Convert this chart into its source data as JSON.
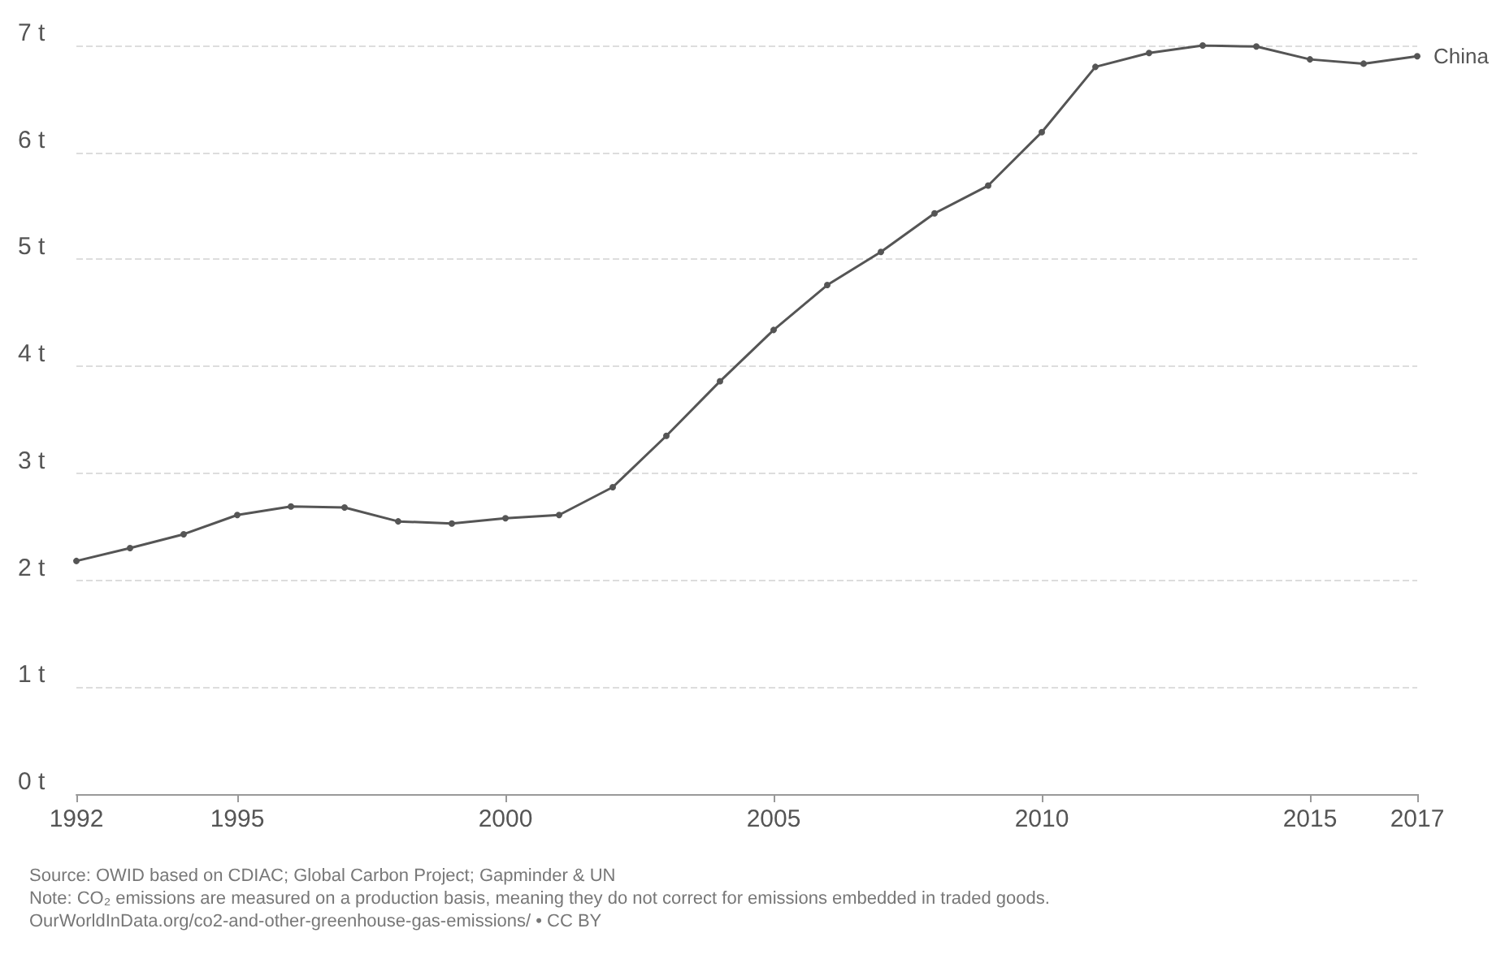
{
  "chart_data": {
    "type": "line",
    "x": [
      1992,
      1993,
      1994,
      1995,
      1996,
      1997,
      1998,
      1999,
      2000,
      2001,
      2002,
      2003,
      2004,
      2005,
      2006,
      2007,
      2008,
      2009,
      2010,
      2011,
      2012,
      2013,
      2014,
      2015,
      2016,
      2017
    ],
    "series": [
      {
        "name": "China",
        "color": "#555555",
        "values": [
          2.18,
          2.3,
          2.43,
          2.61,
          2.69,
          2.68,
          2.55,
          2.53,
          2.58,
          2.61,
          2.87,
          3.35,
          3.86,
          4.34,
          4.76,
          5.07,
          5.43,
          5.69,
          6.19,
          6.8,
          6.93,
          7.0,
          6.99,
          6.87,
          6.83,
          6.9
        ]
      }
    ],
    "xlim": [
      1992,
      2017
    ],
    "xticks": [
      1992,
      1995,
      2000,
      2005,
      2010,
      2015,
      2017
    ],
    "ylim": [
      0,
      7
    ],
    "yticks": [
      {
        "value": 0,
        "label": "0 t"
      },
      {
        "value": 1,
        "label": "1 t"
      },
      {
        "value": 2,
        "label": "2 t"
      },
      {
        "value": 3,
        "label": "3 t"
      },
      {
        "value": 4,
        "label": "4 t"
      },
      {
        "value": 5,
        "label": "5 t"
      },
      {
        "value": 6,
        "label": "6 t"
      },
      {
        "value": 7,
        "label": "7 t"
      }
    ],
    "grid": "y",
    "marker": "circle",
    "line_style": "solid",
    "legend": false,
    "annotations": [
      "Source: OWID based on CDIAC; Global Carbon Project; Gapminder & UN",
      "Note: CO₂ emissions are measured on a production basis, meaning they do not correct for emissions embedded in traded goods.",
      "OurWorldInData.org/co2-and-other-greenhouse-gas-emissions/ • CC BY"
    ]
  }
}
